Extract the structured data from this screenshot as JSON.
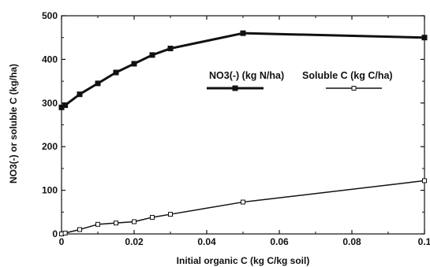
{
  "chart_data": {
    "type": "line",
    "xlabel": "Initial organic C (kg C/kg soil)",
    "ylabel": "NO3(-) or soluble C (kg/ha)",
    "xlim": [
      0,
      0.1
    ],
    "ylim": [
      0,
      500
    ],
    "x_ticks": [
      "0",
      "0.02",
      "0.04",
      "0.06",
      "0.08",
      "0.1"
    ],
    "y_ticks": [
      "0",
      "100",
      "200",
      "300",
      "400",
      "500"
    ],
    "grid": false,
    "legend_position": "center-right",
    "series": [
      {
        "name": "NO3(-) (kg N/ha)",
        "marker": "filled-square",
        "color": "#111111",
        "x": [
          0,
          0.001,
          0.005,
          0.01,
          0.015,
          0.02,
          0.025,
          0.03,
          0.05,
          0.1
        ],
        "y": [
          290,
          295,
          320,
          345,
          370,
          390,
          410,
          425,
          460,
          450
        ]
      },
      {
        "name": "Soluble C (kg C/ha)",
        "marker": "open-square",
        "color": "#111111",
        "x": [
          0,
          0.001,
          0.005,
          0.01,
          0.015,
          0.02,
          0.025,
          0.03,
          0.05,
          0.1
        ],
        "y": [
          0,
          2,
          10,
          22,
          25,
          28,
          38,
          45,
          73,
          122
        ]
      }
    ]
  }
}
